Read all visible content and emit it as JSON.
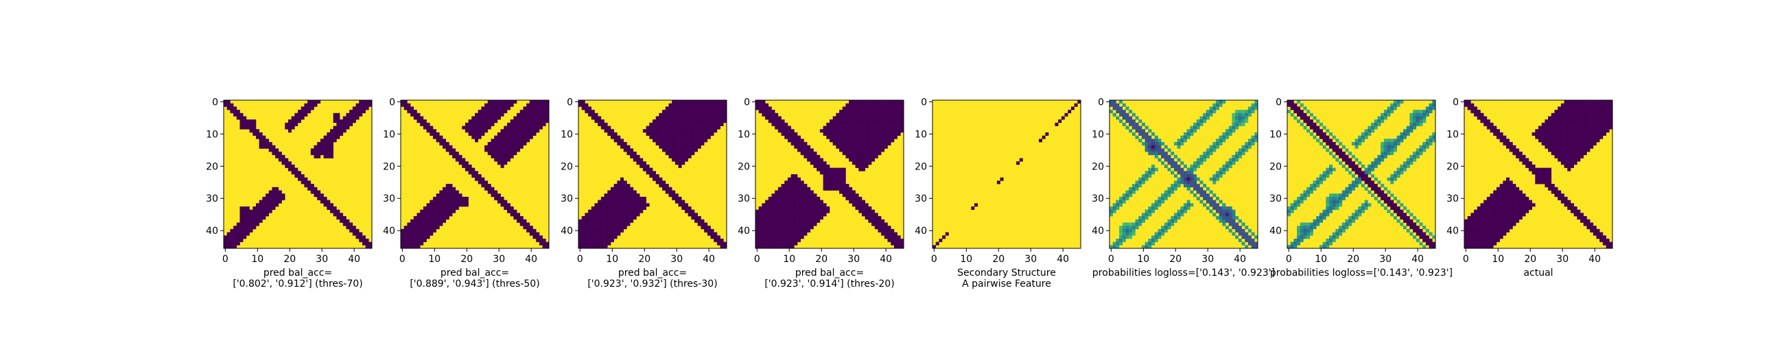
{
  "colors": {
    "low": "#440154",
    "high": "#fde725",
    "colormap": [
      "#440154",
      "#3b528b",
      "#21918c",
      "#5ec962",
      "#fde725"
    ],
    "axis": "#000000",
    "background": "#ffffff"
  },
  "chart_data": [
    {
      "type": "heatmap",
      "kind": "binary",
      "n": 46,
      "caption": [
        "pred bal_acc=",
        "['0.802', '0.912'] (thres-70)"
      ],
      "xticks": [
        0,
        10,
        20,
        30,
        40
      ],
      "yticks": [
        0,
        10,
        20,
        30,
        40
      ],
      "xlim": [
        -0.5,
        45.5
      ],
      "ylim": [
        45.5,
        -0.5
      ],
      "main_diagonal_halfwidth": 1.1,
      "anti_diagonal": {
        "bands": [
          [
            42,
            46,
            0.9
          ],
          [
            -10,
            -5,
            0.9
          ],
          [
            26,
            29,
            0.9
          ],
          [
            -31,
            -27,
            0.9
          ]
        ]
      },
      "blobs": [
        [
          6,
          5,
          8,
          9
        ],
        [
          12,
          11,
          14,
          13
        ],
        [
          4,
          34,
          6,
          35
        ],
        [
          3,
          42,
          4,
          42
        ],
        [
          14,
          31,
          17,
          33
        ],
        [
          33,
          5,
          37,
          7
        ]
      ]
    },
    {
      "type": "heatmap",
      "kind": "binary",
      "n": 46,
      "caption": [
        "pred bal_acc=",
        "['0.889', '0.943'] (thres-50)"
      ],
      "xticks": [
        0,
        10,
        20,
        30,
        40
      ],
      "yticks": [
        0,
        10,
        20,
        30,
        40
      ],
      "xlim": [
        -0.5,
        45.5
      ],
      "ylim": [
        45.5,
        -0.5
      ],
      "main_diagonal_halfwidth": 1.6,
      "anti_diagonal": {
        "bands": [
          [
            41,
            50,
            1.3
          ],
          [
            -12,
            -4,
            1.3
          ],
          [
            28,
            34,
            1.1
          ],
          [
            -30,
            -24,
            1.1
          ]
        ]
      },
      "blobs": [
        [
          12,
          29,
          17,
          32
        ],
        [
          30,
          18,
          32,
          20
        ]
      ]
    },
    {
      "type": "heatmap",
      "kind": "binary",
      "n": 46,
      "caption": [
        "pred bal_acc=",
        "['0.923', '0.932'] (thres-30)"
      ],
      "xticks": [
        0,
        10,
        20,
        30,
        40
      ],
      "yticks": [
        0,
        10,
        20,
        30,
        40
      ],
      "xlim": [
        -0.5,
        45.5
      ],
      "ylim": [
        45.5,
        -0.5
      ],
      "main_diagonal_halfwidth": 1.9,
      "anti_diagonal": {
        "bands": [
          [
            39,
            50,
            1.8
          ],
          [
            -12,
            2,
            1.8
          ],
          [
            30,
            37,
            1.6
          ],
          [
            -32,
            -22,
            1.6
          ]
        ]
      },
      "blobs": [
        [
          11,
          28,
          16,
          31
        ],
        [
          30,
          18,
          33,
          20
        ],
        [
          39,
          1,
          43,
          4
        ]
      ]
    },
    {
      "type": "heatmap",
      "kind": "binary",
      "n": 46,
      "caption": [
        "pred bal_acc=",
        "['0.923', '0.914'] (thres-20)"
      ],
      "xticks": [
        0,
        10,
        20,
        30,
        40
      ],
      "yticks": [
        0,
        10,
        20,
        30,
        40
      ],
      "xlim": [
        -0.5,
        45.5
      ],
      "ylim": [
        45.5,
        -0.5
      ],
      "main_diagonal_halfwidth": 2.2,
      "anti_diagonal": {
        "bands": [
          [
            38,
            52,
            2.0
          ],
          [
            -14,
            4,
            2.0
          ],
          [
            30,
            37,
            1.8
          ],
          [
            -33,
            -22,
            1.8
          ]
        ]
      },
      "blobs": [
        [
          21,
          21,
          27,
          27
        ],
        [
          12,
          28,
          16,
          31
        ],
        [
          39,
          2,
          43,
          6
        ]
      ]
    },
    {
      "type": "heatmap",
      "kind": "secondary_structure",
      "n": 46,
      "caption": [
        "Secondary Structure",
        "A pairwise Feature"
      ],
      "xticks": [
        0,
        10,
        20,
        30,
        40
      ],
      "yticks": [
        0,
        10,
        20,
        30,
        40
      ],
      "xlim": [
        -0.5,
        45.5
      ],
      "ylim": [
        45.5,
        -0.5
      ],
      "anti_diagonal_segments": [
        [
          0,
          4
        ],
        [
          12,
          13
        ],
        [
          20,
          21
        ],
        [
          26,
          27
        ],
        [
          33,
          35
        ],
        [
          38,
          45
        ]
      ]
    },
    {
      "type": "heatmap",
      "kind": "probability",
      "n": 46,
      "caption": [
        "probabilities logloss=['0.143', '0.923']"
      ],
      "xticks": [
        0,
        10,
        20,
        30,
        40
      ],
      "yticks": [
        0,
        10,
        20,
        30,
        40
      ],
      "xlim": [
        -0.5,
        45.5
      ],
      "ylim": [
        45.5,
        -0.5
      ],
      "main_diagonal": {
        "halfwidth": 1.0,
        "value": 0.25,
        "side_offset": 3,
        "side_value": 0.55
      },
      "anti_diagonal": {
        "center": 46,
        "value": 0.45,
        "parallel_offsets": [
          -12,
          10
        ],
        "parallel_value": 0.4
      },
      "hot_spots": [
        [
          14,
          13,
          0.05
        ],
        [
          24,
          24,
          0.05
        ],
        [
          35,
          36,
          0.1
        ],
        [
          5,
          40,
          0.35
        ],
        [
          40,
          5,
          0.35
        ]
      ]
    },
    {
      "type": "heatmap",
      "kind": "probability",
      "n": 46,
      "caption": [
        "probabilities logloss=['0.143', '0.923']"
      ],
      "xticks": [
        0,
        10,
        20,
        30,
        40
      ],
      "yticks": [
        0,
        10,
        20,
        30,
        40
      ],
      "xlim": [
        -0.5,
        45.5
      ],
      "ylim": [
        45.5,
        -0.5
      ],
      "main_diagonal": {
        "halfwidth": 1.8,
        "value": 0.0,
        "side_offset": 3,
        "side_value": 0.6
      },
      "anti_diagonal": {
        "center": 46,
        "value": 0.35,
        "parallel_offsets": [
          -12,
          10
        ],
        "parallel_value": 0.4
      },
      "hot_spots": [
        [
          5,
          40,
          0.3
        ],
        [
          40,
          5,
          0.3
        ],
        [
          14,
          31,
          0.3
        ],
        [
          31,
          14,
          0.3
        ]
      ]
    },
    {
      "type": "heatmap",
      "kind": "binary",
      "n": 46,
      "caption": [
        "actual"
      ],
      "xticks": [
        0,
        10,
        20,
        30,
        40
      ],
      "yticks": [
        0,
        10,
        20,
        30,
        40
      ],
      "xlim": [
        -0.5,
        45.5
      ],
      "ylim": [
        45.5,
        -0.5
      ],
      "main_diagonal_halfwidth": 1.5,
      "anti_diagonal": {
        "bands": [
          [
            40,
            52,
            1.4
          ],
          [
            -12,
            2,
            1.4
          ],
          [
            32,
            38,
            1.2
          ],
          [
            -33,
            -24,
            1.2
          ]
        ]
      },
      "blobs": [
        [
          21,
          22,
          25,
          26
        ],
        [
          33,
          11,
          35,
          12
        ],
        [
          42,
          3,
          44,
          4
        ],
        [
          1,
          45,
          2,
          45
        ]
      ]
    }
  ]
}
